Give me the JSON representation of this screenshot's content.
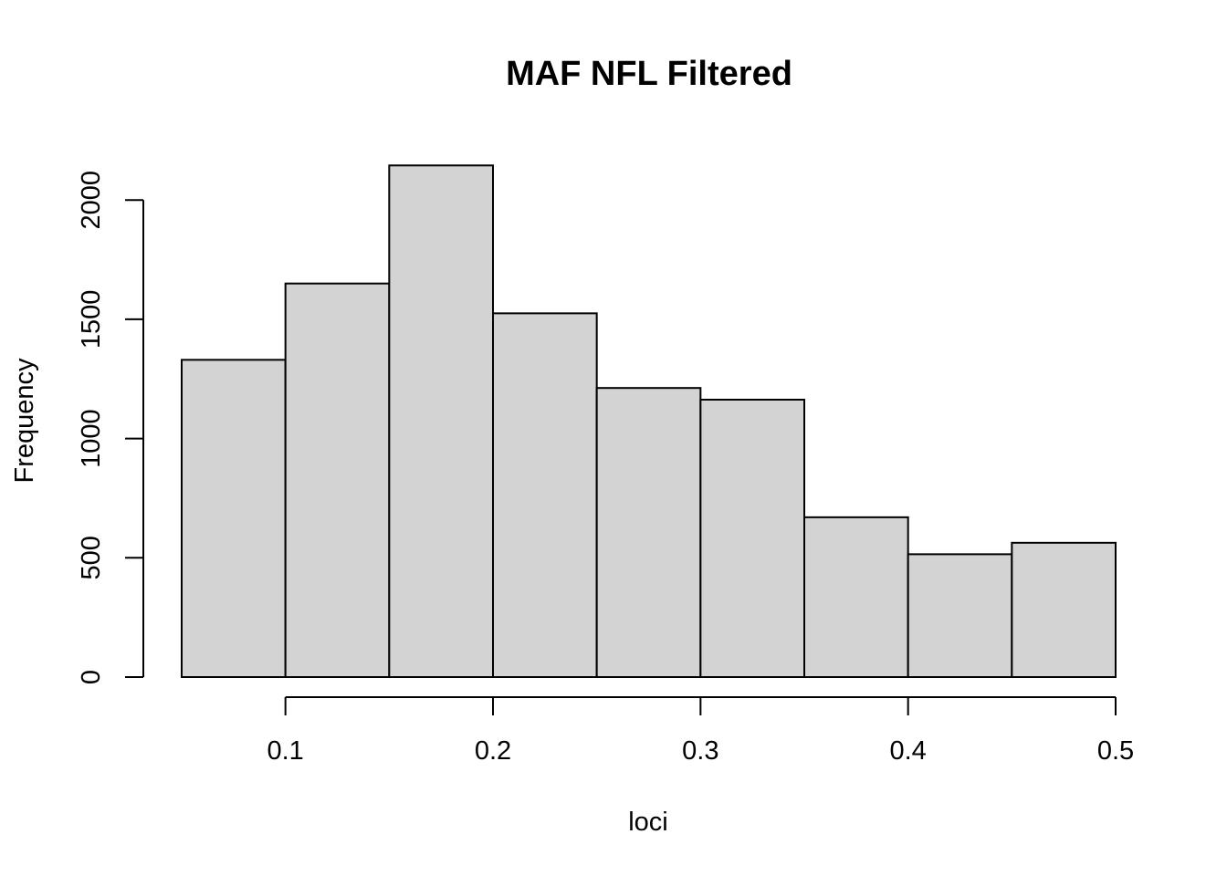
{
  "chart_data": {
    "type": "bar",
    "title": "MAF NFL Filtered",
    "xlabel": "loci",
    "ylabel": "Frequency",
    "bins": [
      {
        "x0": 0.05,
        "x1": 0.1,
        "count": 1330
      },
      {
        "x0": 0.1,
        "x1": 0.15,
        "count": 1650
      },
      {
        "x0": 0.15,
        "x1": 0.2,
        "count": 2145
      },
      {
        "x0": 0.2,
        "x1": 0.25,
        "count": 1525
      },
      {
        "x0": 0.25,
        "x1": 0.3,
        "count": 1212
      },
      {
        "x0": 0.3,
        "x1": 0.35,
        "count": 1163
      },
      {
        "x0": 0.35,
        "x1": 0.4,
        "count": 670
      },
      {
        "x0": 0.4,
        "x1": 0.45,
        "count": 515
      },
      {
        "x0": 0.45,
        "x1": 0.5,
        "count": 563
      }
    ],
    "xlim": [
      0.05,
      0.5
    ],
    "ylim": [
      0,
      2200
    ],
    "xticks": [
      0.1,
      0.2,
      0.3,
      0.4,
      0.5
    ],
    "xtick_labels": [
      "0.1",
      "0.2",
      "0.3",
      "0.4",
      "0.5"
    ],
    "yticks": [
      0,
      500,
      1000,
      1500,
      2000
    ],
    "ytick_labels": [
      "0",
      "500",
      "1000",
      "1500",
      "2000"
    ],
    "bar_color": "#d3d3d3",
    "edge_color": "#000000",
    "grid": false,
    "legend": "none"
  }
}
